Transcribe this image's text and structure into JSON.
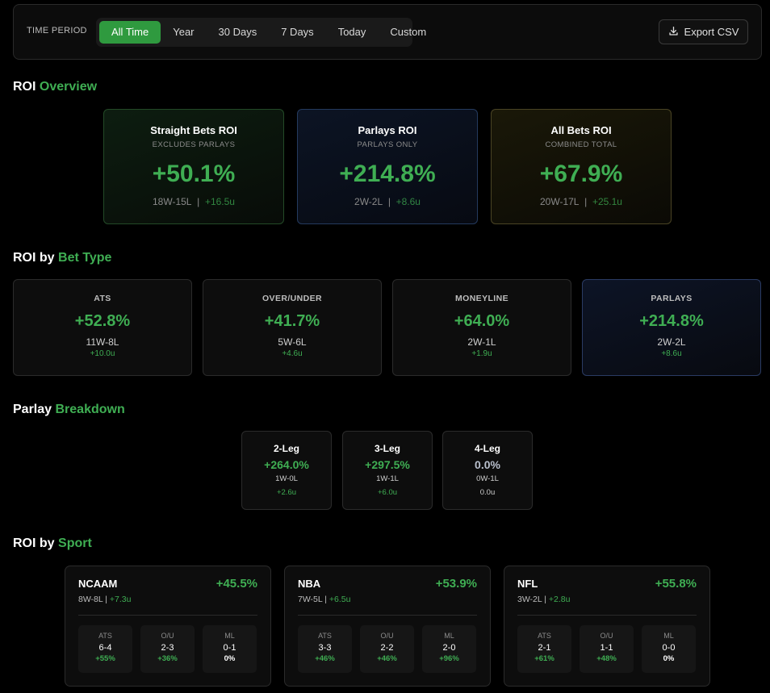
{
  "filters": {
    "label": "TIME PERIOD",
    "options": [
      "All Time",
      "Year",
      "30 Days",
      "7 Days",
      "Today",
      "Custom"
    ],
    "selected": "All Time",
    "export_label": "Export CSV",
    "export_icon": "download-icon"
  },
  "sections": {
    "overview": {
      "prefix": "ROI",
      "accent": "Overview"
    },
    "bet_type": {
      "prefix": "ROI by",
      "accent": "Bet Type"
    },
    "parlay": {
      "prefix": "Parlay",
      "accent": "Breakdown"
    },
    "sport": {
      "prefix": "ROI by",
      "accent": "Sport"
    }
  },
  "overview": [
    {
      "title": "Straight Bets ROI",
      "sub": "EXCLUDES PARLAYS",
      "roi": "+50.1%",
      "record": "18W-15L",
      "units": "+16.5u"
    },
    {
      "title": "Parlays ROI",
      "sub": "PARLAYS ONLY",
      "roi": "+214.8%",
      "record": "2W-2L",
      "units": "+8.6u"
    },
    {
      "title": "All Bets ROI",
      "sub": "COMBINED TOTAL",
      "roi": "+67.9%",
      "record": "20W-17L",
      "units": "+25.1u"
    }
  ],
  "bet_types": [
    {
      "title": "ATS",
      "roi": "+52.8%",
      "record": "11W-8L",
      "units": "+10.0u"
    },
    {
      "title": "OVER/UNDER",
      "roi": "+41.7%",
      "record": "5W-6L",
      "units": "+4.6u"
    },
    {
      "title": "MONEYLINE",
      "roi": "+64.0%",
      "record": "2W-1L",
      "units": "+1.9u"
    },
    {
      "title": "PARLAYS",
      "roi": "+214.8%",
      "record": "2W-2L",
      "units": "+8.6u"
    }
  ],
  "parlays": [
    {
      "title": "2-Leg",
      "roi": "+264.0%",
      "record": "1W-0L",
      "units": "+2.6u"
    },
    {
      "title": "3-Leg",
      "roi": "+297.5%",
      "record": "1W-1L",
      "units": "+6.0u"
    },
    {
      "title": "4-Leg",
      "roi": "0.0%",
      "record": "0W-1L",
      "units": "0.0u"
    }
  ],
  "sports": [
    {
      "name": "NCAAM",
      "roi": "+45.5%",
      "record": "8W-8L",
      "units": "+7.3u",
      "stats": [
        {
          "label": "ATS",
          "record": "6-4",
          "pct": "+55%"
        },
        {
          "label": "O/U",
          "record": "2-3",
          "pct": "+36%"
        },
        {
          "label": "ML",
          "record": "0-1",
          "pct": "0%"
        }
      ]
    },
    {
      "name": "NBA",
      "roi": "+53.9%",
      "record": "7W-5L",
      "units": "+6.5u",
      "stats": [
        {
          "label": "ATS",
          "record": "3-3",
          "pct": "+46%"
        },
        {
          "label": "O/U",
          "record": "2-2",
          "pct": "+46%"
        },
        {
          "label": "ML",
          "record": "2-0",
          "pct": "+96%"
        }
      ]
    },
    {
      "name": "NFL",
      "roi": "+55.8%",
      "record": "3W-2L",
      "units": "+2.8u",
      "stats": [
        {
          "label": "ATS",
          "record": "2-1",
          "pct": "+61%"
        },
        {
          "label": "O/U",
          "record": "1-1",
          "pct": "+48%"
        },
        {
          "label": "ML",
          "record": "0-0",
          "pct": "0%"
        }
      ]
    }
  ],
  "colors": {
    "accent": "#3fae53",
    "background": "#000000",
    "active_tab": "#2f9a3f"
  }
}
